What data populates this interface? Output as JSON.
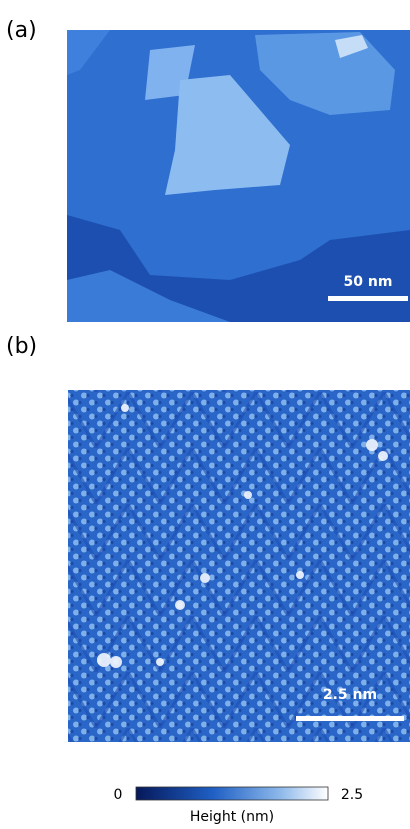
{
  "panels": [
    {
      "label": "(a)",
      "scale_bar": "50 nm"
    },
    {
      "label": "(b)",
      "scale_bar": "2.5 nm"
    }
  ],
  "colorbar": {
    "min": "0",
    "max": "2.5",
    "label": "Height (nm)"
  }
}
